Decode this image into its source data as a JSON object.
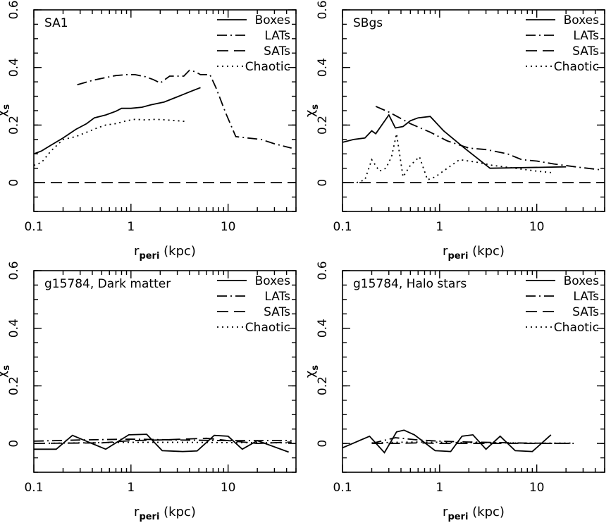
{
  "chart_data": [
    {
      "type": "line",
      "title": "SA1",
      "xlabel_main": "r",
      "xlabel_sub": "peri",
      "xlabel_unit": " (kpc)",
      "ylabel_main": "χ",
      "ylabel_sub": "s",
      "xscale": "log",
      "xlim": [
        0.1,
        50
      ],
      "ylim": [
        -0.1,
        0.6
      ],
      "xticks": [
        {
          "v": 0.1,
          "label": "0.1"
        },
        {
          "v": 1,
          "label": "1"
        },
        {
          "v": 10,
          "label": "10"
        }
      ],
      "yticks": [
        {
          "v": 0,
          "label": "0"
        },
        {
          "v": 0.2,
          "label": "0.2"
        },
        {
          "v": 0.4,
          "label": "0.4"
        },
        {
          "v": 0.6,
          "label": "0.6"
        }
      ],
      "legend": [
        "Boxes",
        "LATs",
        "SATs",
        "Chaotic"
      ],
      "legend_position": "top-right",
      "series": [
        {
          "name": "Boxes",
          "style": "solid",
          "x": [
            0.1,
            0.12,
            0.15,
            0.2,
            0.27,
            0.35,
            0.42,
            0.55,
            0.7,
            0.8,
            1.0,
            1.3,
            1.6,
            2.2,
            3.0,
            4.0,
            5.2
          ],
          "y": [
            0.1,
            0.11,
            0.13,
            0.155,
            0.185,
            0.205,
            0.225,
            0.235,
            0.248,
            0.258,
            0.258,
            0.262,
            0.27,
            0.28,
            0.298,
            0.315,
            0.33
          ]
        },
        {
          "name": "LATs",
          "style": "dashdot",
          "x": [
            0.28,
            0.4,
            0.55,
            0.7,
            0.9,
            1.1,
            1.4,
            1.7,
            2.0,
            2.5,
            3.0,
            3.5,
            4.0,
            4.6,
            5.2,
            6.5,
            7.5,
            9.5,
            12,
            16,
            22,
            30,
            45
          ],
          "y": [
            0.34,
            0.355,
            0.365,
            0.372,
            0.375,
            0.375,
            0.368,
            0.358,
            0.346,
            0.37,
            0.37,
            0.37,
            0.39,
            0.385,
            0.375,
            0.375,
            0.33,
            0.24,
            0.16,
            0.155,
            0.15,
            0.135,
            0.12
          ]
        },
        {
          "name": "SATs",
          "style": "dashed",
          "x": [
            0.1,
            0.3,
            0.5,
            1.0,
            2.0,
            5.0,
            10,
            20,
            50
          ],
          "y": [
            0.0,
            0.0,
            0.0,
            0.0,
            0.0,
            0.0,
            0.0,
            0.0,
            0.0
          ]
        },
        {
          "name": "Chaotic",
          "style": "dotted",
          "x": [
            0.1,
            0.12,
            0.15,
            0.2,
            0.27,
            0.35,
            0.45,
            0.55,
            0.7,
            0.9,
            1.1,
            1.4,
            1.8,
            2.3,
            3.0,
            3.8
          ],
          "y": [
            0.06,
            0.07,
            0.11,
            0.15,
            0.16,
            0.175,
            0.19,
            0.2,
            0.205,
            0.215,
            0.22,
            0.218,
            0.22,
            0.218,
            0.215,
            0.212
          ]
        }
      ]
    },
    {
      "type": "line",
      "title": "SBgs",
      "xlabel_main": "r",
      "xlabel_sub": "peri",
      "xlabel_unit": " (kpc)",
      "ylabel_main": "χ",
      "ylabel_sub": "s",
      "xscale": "log",
      "xlim": [
        0.1,
        50
      ],
      "ylim": [
        -0.1,
        0.6
      ],
      "xticks": [
        {
          "v": 0.1,
          "label": "0.1"
        },
        {
          "v": 1,
          "label": "1"
        },
        {
          "v": 10,
          "label": "10"
        }
      ],
      "yticks": [
        {
          "v": 0,
          "label": "0"
        },
        {
          "v": 0.2,
          "label": "0.2"
        },
        {
          "v": 0.4,
          "label": "0.4"
        },
        {
          "v": 0.6,
          "label": "0.6"
        }
      ],
      "legend": [
        "Boxes",
        "LATs",
        "SATs",
        "Chaotic"
      ],
      "legend_position": "top-right",
      "series": [
        {
          "name": "Boxes",
          "style": "solid",
          "x": [
            0.1,
            0.13,
            0.17,
            0.2,
            0.22,
            0.26,
            0.3,
            0.35,
            0.42,
            0.5,
            0.6,
            0.8,
            1.1,
            1.8,
            3.3,
            20
          ],
          "y": [
            0.14,
            0.15,
            0.155,
            0.18,
            0.17,
            0.205,
            0.235,
            0.19,
            0.195,
            0.215,
            0.225,
            0.23,
            0.18,
            0.12,
            0.05,
            0.055
          ]
        },
        {
          "name": "LATs",
          "style": "dashdot",
          "x": [
            0.22,
            0.3,
            0.5,
            0.8,
            1.2,
            2.0,
            3.0,
            5.0,
            7.0,
            10,
            15,
            25,
            45
          ],
          "y": [
            0.265,
            0.245,
            0.205,
            0.175,
            0.145,
            0.12,
            0.115,
            0.1,
            0.08,
            0.075,
            0.065,
            0.055,
            0.045
          ]
        },
        {
          "name": "SATs",
          "style": "dashed",
          "x": [
            0.1,
            0.3,
            0.5,
            1.0,
            2.0,
            5.0,
            10,
            20,
            50
          ],
          "y": [
            0.0,
            0.0,
            0.0,
            0.0,
            0.0,
            0.0,
            0.0,
            0.0,
            0.0
          ]
        },
        {
          "name": "Chaotic",
          "style": "dotted",
          "x": [
            0.14,
            0.17,
            0.2,
            0.24,
            0.28,
            0.32,
            0.36,
            0.42,
            0.5,
            0.62,
            0.75,
            0.9,
            1.2,
            1.6,
            2.5,
            3.5,
            6.0,
            10,
            14
          ],
          "y": [
            0.0,
            0.01,
            0.08,
            0.04,
            0.05,
            0.09,
            0.17,
            0.02,
            0.06,
            0.09,
            0.01,
            0.02,
            0.05,
            0.08,
            0.07,
            0.06,
            0.05,
            0.04,
            0.035
          ]
        }
      ]
    },
    {
      "type": "line",
      "title": "g15784, Dark matter",
      "xlabel_main": "r",
      "xlabel_sub": "peri",
      "xlabel_unit": " (kpc)",
      "ylabel_main": "χ",
      "ylabel_sub": "s",
      "xscale": "log",
      "xlim": [
        0.1,
        50
      ],
      "ylim": [
        -0.1,
        0.6
      ],
      "xticks": [
        {
          "v": 0.1,
          "label": "0.1"
        },
        {
          "v": 1,
          "label": "1"
        },
        {
          "v": 10,
          "label": "10"
        }
      ],
      "yticks": [
        {
          "v": 0,
          "label": "0"
        },
        {
          "v": 0.2,
          "label": "0.2"
        },
        {
          "v": 0.4,
          "label": "0.4"
        },
        {
          "v": 0.6,
          "label": "0.6"
        }
      ],
      "legend": [
        "Boxes",
        "LATs",
        "SATs",
        "Chaotic"
      ],
      "legend_position": "top-right",
      "series": [
        {
          "name": "Boxes",
          "style": "solid",
          "x": [
            0.1,
            0.17,
            0.25,
            0.55,
            0.95,
            1.45,
            2.1,
            3.4,
            4.8,
            7.2,
            10,
            14,
            20,
            42
          ],
          "y": [
            -0.02,
            -0.02,
            0.028,
            -0.02,
            0.03,
            0.032,
            -0.025,
            -0.028,
            -0.026,
            0.028,
            0.025,
            -0.02,
            0.01,
            -0.03
          ]
        },
        {
          "name": "LATs",
          "style": "dashdot",
          "x": [
            0.1,
            0.3,
            1.0,
            3.0,
            10,
            45
          ],
          "y": [
            0.008,
            0.012,
            0.015,
            0.012,
            0.01,
            0.01
          ]
        },
        {
          "name": "SATs",
          "style": "dashed",
          "x": [
            0.1,
            0.5,
            1.0,
            2.0,
            6.0,
            10,
            20,
            45
          ],
          "y": [
            0.0,
            0.002,
            0.01,
            0.012,
            0.018,
            0.01,
            0.0,
            0.005
          ]
        },
        {
          "name": "Chaotic",
          "style": "dotted",
          "x": [
            0.1,
            0.3,
            1.0,
            3.0,
            10,
            45
          ],
          "y": [
            0.0,
            0.002,
            0.004,
            0.004,
            0.003,
            0.002
          ]
        }
      ]
    },
    {
      "type": "line",
      "title": "g15784, Halo stars",
      "xlabel_main": "r",
      "xlabel_sub": "peri",
      "xlabel_unit": " (kpc)",
      "ylabel_main": "χ",
      "ylabel_sub": "s",
      "xscale": "log",
      "xlim": [
        0.1,
        50
      ],
      "ylim": [
        -0.1,
        0.6
      ],
      "xticks": [
        {
          "v": 0.1,
          "label": "0.1"
        },
        {
          "v": 1,
          "label": "1"
        },
        {
          "v": 10,
          "label": "10"
        }
      ],
      "yticks": [
        {
          "v": 0,
          "label": "0"
        },
        {
          "v": 0.2,
          "label": "0.2"
        },
        {
          "v": 0.4,
          "label": "0.4"
        },
        {
          "v": 0.6,
          "label": "0.6"
        }
      ],
      "legend": [
        "Boxes",
        "LATs",
        "SATs",
        "Chaotic"
      ],
      "legend_position": "top-right",
      "series": [
        {
          "name": "Boxes",
          "style": "solid",
          "x": [
            0.1,
            0.19,
            0.27,
            0.36,
            0.43,
            0.55,
            0.9,
            1.3,
            1.7,
            2.2,
            3.0,
            4.2,
            6.0,
            9.0,
            14
          ],
          "y": [
            -0.015,
            0.025,
            -0.032,
            0.04,
            0.046,
            0.03,
            -0.025,
            -0.028,
            0.025,
            0.03,
            -0.02,
            0.025,
            -0.025,
            -0.028,
            0.03
          ]
        },
        {
          "name": "LATs",
          "style": "dashdot",
          "x": [
            0.2,
            0.35,
            0.6,
            1.0,
            2.0,
            4.0,
            8.0,
            24
          ],
          "y": [
            0.0,
            0.02,
            0.012,
            0.008,
            0.005,
            0.003,
            0.001,
            0.0
          ]
        },
        {
          "name": "SATs",
          "style": "dashed",
          "x": [
            0.2,
            0.35,
            0.6,
            1.0,
            2.0,
            4.0,
            8.0,
            24
          ],
          "y": [
            0.0,
            0.0,
            0.002,
            0.0,
            0.0,
            0.0,
            0.0,
            0.0
          ]
        },
        {
          "name": "Chaotic",
          "style": "dotted",
          "x": [
            0.2,
            0.35,
            0.6,
            1.0,
            2.0,
            4.0,
            8.0,
            24
          ],
          "y": [
            0.002,
            0.004,
            0.005,
            0.004,
            0.003,
            0.002,
            0.001,
            0.001
          ]
        }
      ]
    }
  ]
}
